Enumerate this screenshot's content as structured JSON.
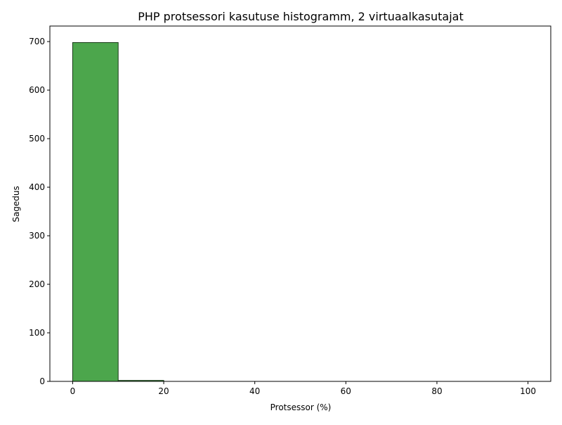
{
  "chart_data": {
    "type": "bar",
    "title": "PHP protsessori kasutuse histogramm, 2 virtuaalkasutajat",
    "xlabel": "Protsessor (%)",
    "ylabel": "Sagedus",
    "bins": [
      {
        "start": 0,
        "end": 10,
        "count": 698
      },
      {
        "start": 10,
        "end": 20,
        "count": 2
      },
      {
        "start": 20,
        "end": 30,
        "count": 0
      },
      {
        "start": 30,
        "end": 40,
        "count": 0
      },
      {
        "start": 40,
        "end": 50,
        "count": 0
      },
      {
        "start": 50,
        "end": 60,
        "count": 0
      },
      {
        "start": 60,
        "end": 70,
        "count": 0
      },
      {
        "start": 70,
        "end": 80,
        "count": 0
      },
      {
        "start": 80,
        "end": 90,
        "count": 0
      },
      {
        "start": 90,
        "end": 100,
        "count": 0
      }
    ],
    "xlim": [
      -5,
      105
    ],
    "ylim": [
      0,
      732
    ],
    "xticks": [
      0,
      20,
      40,
      60,
      80,
      100
    ],
    "yticks": [
      0,
      100,
      200,
      300,
      400,
      500,
      600,
      700
    ],
    "bar_color": "#4ca64c",
    "edge_color": "#1a3a1a",
    "grid": false,
    "legend": "none"
  }
}
